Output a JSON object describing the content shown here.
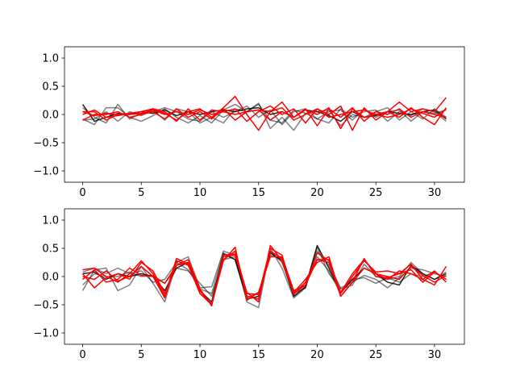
{
  "chart_data": [
    {
      "type": "line",
      "xlim": [
        -1.55,
        32.55
      ],
      "ylim": [
        -1.2,
        1.2
      ],
      "xticks": [
        0,
        5,
        10,
        15,
        20,
        25,
        30
      ],
      "xtick_labels": [
        "0",
        "5",
        "10",
        "15",
        "20",
        "25",
        "30"
      ],
      "yticks": [
        -1.0,
        -0.5,
        0.0,
        0.5,
        1.0
      ],
      "ytick_labels": [
        "−1.0",
        "−0.5",
        "0.0",
        "0.5",
        "1.0"
      ],
      "grid": false,
      "x": [
        0,
        1,
        2,
        3,
        4,
        5,
        6,
        7,
        8,
        9,
        10,
        11,
        12,
        13,
        14,
        15,
        16,
        17,
        18,
        19,
        20,
        21,
        22,
        23,
        24,
        25,
        26,
        27,
        28,
        29,
        30,
        31
      ],
      "series": [
        {
          "color": "#000000",
          "opacity": 0.5,
          "values": [
            -0.08,
            -0.18,
            0.12,
            0.12,
            -0.05,
            -0.12,
            -0.02,
            0.1,
            -0.05,
            -0.15,
            -0.02,
            -0.15,
            0.08,
            0.18,
            0.05,
            0.2,
            -0.25,
            -0.05,
            -0.28,
            0.02,
            0.05,
            0.08,
            -0.2,
            0.0,
            -0.05,
            0.05,
            0.12,
            -0.1,
            0.05,
            -0.08,
            0.1,
            -0.05
          ]
        },
        {
          "color": "#000000",
          "opacity": 0.5,
          "values": [
            0.12,
            -0.05,
            -0.15,
            0.18,
            -0.08,
            0.02,
            0.05,
            0.12,
            0.05,
            -0.08,
            -0.12,
            0.05,
            -0.05,
            0.05,
            0.15,
            -0.05,
            0.08,
            -0.18,
            0.05,
            0.1,
            -0.08,
            0.05,
            0.08,
            -0.1,
            0.1,
            -0.05,
            0.05,
            0.08,
            -0.12,
            0.05,
            0.02,
            0.08
          ]
        },
        {
          "color": "#000000",
          "opacity": 0.5,
          "values": [
            -0.1,
            -0.08,
            0.05,
            -0.12,
            0.05,
            -0.02,
            0.08,
            -0.1,
            0.1,
            0.05,
            -0.15,
            -0.05,
            -0.15,
            0.1,
            0.05,
            0.18,
            -0.1,
            -0.15,
            0.08,
            0.02,
            -0.08,
            -0.15,
            0.1,
            -0.05,
            0.05,
            0.08,
            -0.12,
            0.05,
            -0.02,
            0.1,
            0.05,
            -0.12
          ]
        },
        {
          "color": "#000000",
          "opacity": 0.85,
          "values": [
            0.18,
            -0.12,
            -0.05,
            0.02,
            0.0,
            0.05,
            0.02,
            0.08,
            -0.02,
            0.05,
            0.0,
            0.05,
            0.08,
            0.05,
            0.1,
            0.12,
            0.0,
            0.05,
            -0.05,
            0.08,
            0.05,
            -0.02,
            -0.12,
            0.05,
            -0.05,
            -0.02,
            0.05,
            0.02,
            0.0,
            0.05,
            0.08,
            -0.08
          ]
        },
        {
          "color": "#ff0000",
          "opacity": 1,
          "values": [
            0.0,
            0.08,
            -0.05,
            -0.02,
            0.02,
            0.05,
            0.1,
            0.02,
            -0.1,
            0.05,
            0.1,
            -0.05,
            0.12,
            0.32,
            0.0,
            -0.28,
            0.05,
            0.22,
            -0.05,
            0.08,
            0.0,
            0.12,
            -0.25,
            0.1,
            -0.05,
            0.0,
            0.05,
            0.22,
            0.05,
            0.1,
            0.05,
            0.3
          ]
        },
        {
          "color": "#ff0000",
          "opacity": 1,
          "values": [
            0.05,
            -0.02,
            0.02,
            0.0,
            0.02,
            0.05,
            0.1,
            0.05,
            -0.12,
            0.1,
            -0.1,
            0.08,
            0.05,
            0.1,
            -0.12,
            0.05,
            0.15,
            0.0,
            0.1,
            -0.15,
            0.1,
            0.0,
            0.15,
            -0.28,
            0.12,
            -0.1,
            0.05,
            -0.05,
            0.12,
            -0.05,
            -0.18,
            0.12
          ]
        },
        {
          "color": "#ff0000",
          "opacity": 1,
          "values": [
            -0.1,
            0.0,
            0.0,
            0.05,
            -0.05,
            0.0,
            0.05,
            -0.08,
            0.1,
            -0.05,
            0.05,
            -0.08,
            0.1,
            -0.1,
            0.05,
            0.08,
            -0.1,
            0.05,
            -0.05,
            0.1,
            -0.2,
            0.1,
            -0.05,
            0.12,
            -0.12,
            0.05,
            0.0,
            0.1,
            -0.05,
            0.05,
            0.0,
            -0.05
          ]
        },
        {
          "color": "#ff0000",
          "opacity": 1,
          "values": [
            0.05,
            0.05,
            -0.1,
            0.0,
            0.0,
            0.02,
            0.08,
            0.0,
            0.05,
            0.0,
            0.08,
            0.0,
            0.05,
            0.0,
            0.05,
            0.08,
            0.05,
            0.12,
            -0.1,
            0.0,
            0.1,
            -0.05,
            0.0,
            0.05,
            0.08,
            0.0,
            -0.05,
            0.0,
            0.1,
            0.02,
            -0.05,
            0.1
          ]
        }
      ]
    },
    {
      "type": "line",
      "xlim": [
        -1.55,
        32.55
      ],
      "ylim": [
        -1.2,
        1.2
      ],
      "xticks": [
        0,
        5,
        10,
        15,
        20,
        25,
        30
      ],
      "xtick_labels": [
        "0",
        "5",
        "10",
        "15",
        "20",
        "25",
        "30"
      ],
      "yticks": [
        -1.0,
        -0.5,
        0.0,
        0.5,
        1.0
      ],
      "ytick_labels": [
        "−1.0",
        "−0.5",
        "0.0",
        "0.5",
        "1.0"
      ],
      "grid": false,
      "x": [
        0,
        1,
        2,
        3,
        4,
        5,
        6,
        7,
        8,
        9,
        10,
        11,
        12,
        13,
        14,
        15,
        16,
        17,
        18,
        19,
        20,
        21,
        22,
        23,
        24,
        25,
        26,
        27,
        28,
        29,
        30,
        31
      ],
      "series": [
        {
          "color": "#000000",
          "opacity": 0.5,
          "values": [
            -0.25,
            0.12,
            0.15,
            -0.25,
            -0.15,
            0.18,
            -0.12,
            -0.45,
            0.25,
            0.35,
            -0.2,
            -0.18,
            0.45,
            0.38,
            -0.45,
            -0.55,
            0.5,
            0.15,
            -0.38,
            -0.2,
            0.52,
            0.05,
            -0.22,
            -0.15,
            0.22,
            0.0,
            -0.05,
            0.0,
            0.25,
            0.05,
            -0.05,
            0.08
          ]
        },
        {
          "color": "#000000",
          "opacity": 0.5,
          "values": [
            0.08,
            0.15,
            0.05,
            0.15,
            0.05,
            0.1,
            -0.1,
            -0.05,
            0.25,
            0.12,
            -0.22,
            -0.3,
            0.42,
            0.3,
            -0.38,
            -0.28,
            0.38,
            0.32,
            -0.3,
            -0.2,
            0.45,
            0.2,
            -0.2,
            -0.1,
            0.02,
            -0.05,
            -0.2,
            -0.02,
            0.15,
            0.12,
            0.05,
            0.0
          ]
        },
        {
          "color": "#000000",
          "opacity": 0.5,
          "values": [
            -0.15,
            0.05,
            0.0,
            0.0,
            0.08,
            0.0,
            0.02,
            -0.12,
            0.15,
            0.1,
            -0.12,
            -0.35,
            0.3,
            0.35,
            -0.35,
            -0.4,
            0.45,
            0.25,
            -0.3,
            -0.1,
            0.35,
            0.1,
            -0.3,
            -0.05,
            -0.02,
            -0.12,
            -0.02,
            -0.1,
            0.05,
            0.0,
            0.08,
            -0.05
          ]
        },
        {
          "color": "#000000",
          "opacity": 0.85,
          "values": [
            0.05,
            0.08,
            -0.05,
            0.05,
            0.0,
            0.05,
            0.0,
            -0.25,
            0.15,
            0.25,
            -0.25,
            -0.45,
            0.4,
            0.3,
            -0.4,
            -0.35,
            0.42,
            0.28,
            -0.35,
            -0.18,
            0.55,
            0.15,
            -0.28,
            -0.05,
            0.15,
            0.05,
            -0.1,
            -0.15,
            0.2,
            0.05,
            -0.05,
            0.05
          ]
        },
        {
          "color": "#ff0000",
          "opacity": 1,
          "values": [
            0.12,
            0.15,
            0.0,
            -0.1,
            0.05,
            0.28,
            0.05,
            -0.35,
            0.32,
            0.22,
            -0.25,
            -0.5,
            0.35,
            0.38,
            -0.28,
            -0.45,
            0.55,
            0.28,
            -0.3,
            -0.15,
            0.42,
            0.28,
            -0.3,
            0.0,
            0.28,
            0.08,
            0.1,
            0.05,
            0.22,
            -0.05,
            -0.15,
            0.18
          ]
        },
        {
          "color": "#ff0000",
          "opacity": 1,
          "values": [
            0.05,
            -0.2,
            -0.02,
            0.05,
            -0.05,
            0.25,
            0.1,
            -0.3,
            0.2,
            0.25,
            -0.3,
            -0.5,
            0.3,
            0.45,
            -0.3,
            -0.32,
            0.5,
            0.38,
            -0.32,
            -0.1,
            0.3,
            0.25,
            -0.35,
            -0.1,
            0.15,
            0.05,
            -0.05,
            0.1,
            0.05,
            -0.05,
            0.1,
            -0.1
          ]
        },
        {
          "color": "#ff0000",
          "opacity": 1,
          "values": [
            -0.05,
            0.12,
            -0.1,
            -0.05,
            0.15,
            0.02,
            0.0,
            -0.38,
            0.28,
            0.2,
            -0.3,
            -0.48,
            0.28,
            0.52,
            -0.42,
            -0.28,
            0.35,
            0.35,
            -0.25,
            -0.15,
            0.3,
            0.3,
            -0.28,
            0.05,
            0.3,
            0.05,
            0.0,
            -0.05,
            0.18,
            0.02,
            -0.1,
            0.02
          ]
        },
        {
          "color": "#ff0000",
          "opacity": 1,
          "values": [
            0.0,
            -0.05,
            0.1,
            -0.08,
            0.0,
            0.18,
            0.0,
            -0.12,
            0.2,
            0.3,
            -0.22,
            -0.52,
            0.38,
            0.4,
            -0.35,
            -0.4,
            0.45,
            0.32,
            -0.28,
            -0.05,
            0.25,
            0.35,
            -0.35,
            -0.1,
            0.32,
            0.0,
            -0.02,
            0.05,
            0.12,
            -0.1,
            0.08,
            -0.05
          ]
        }
      ]
    }
  ]
}
